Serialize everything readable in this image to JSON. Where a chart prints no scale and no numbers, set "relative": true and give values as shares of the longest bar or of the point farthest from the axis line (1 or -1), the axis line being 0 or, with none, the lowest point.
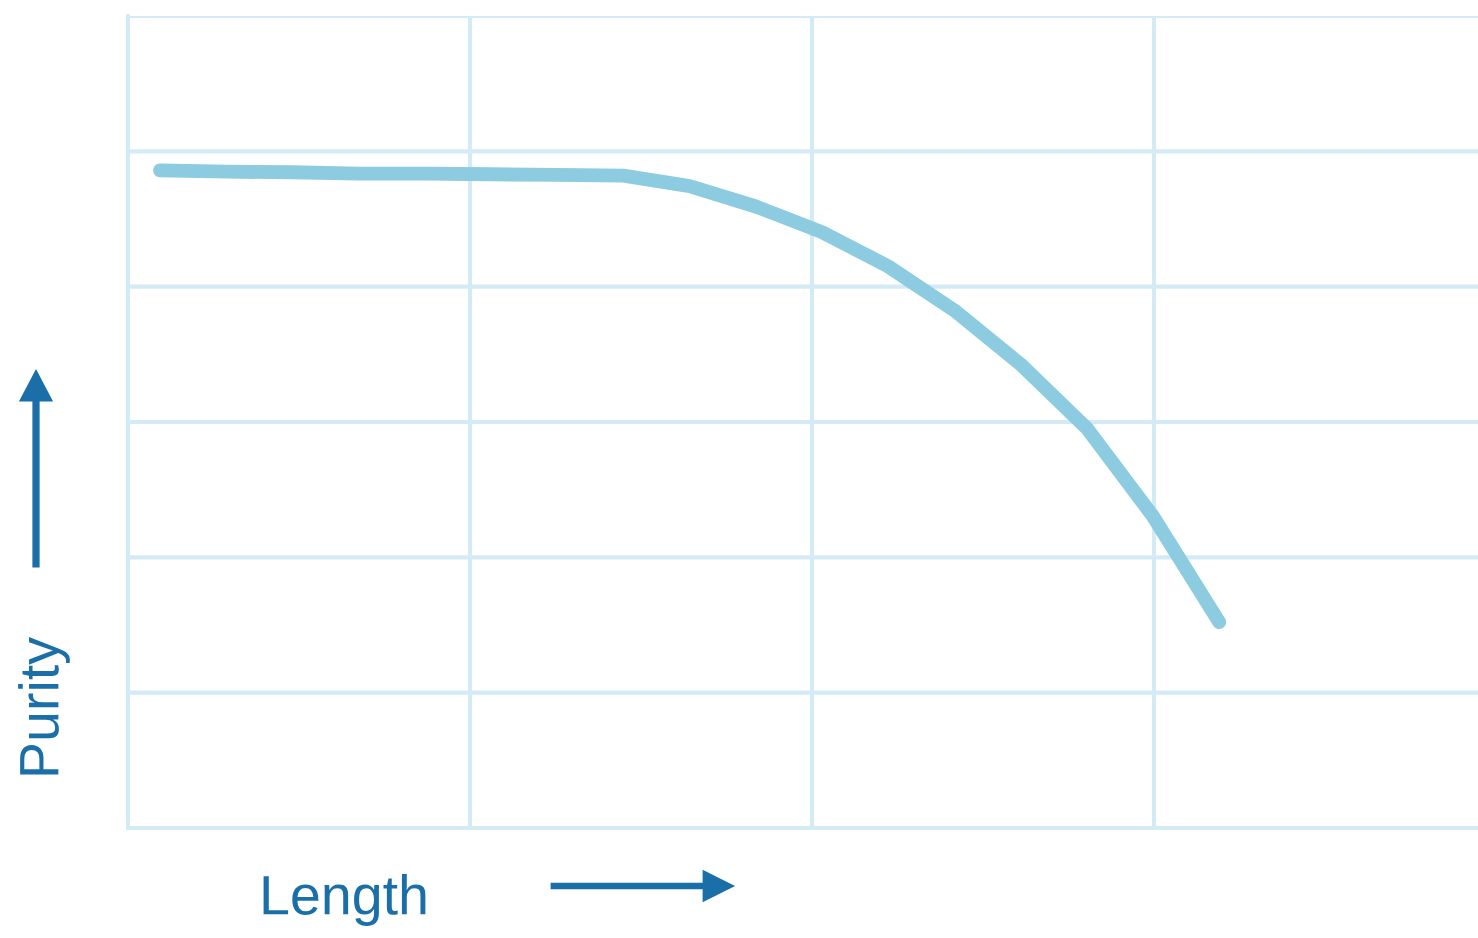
{
  "chart_data": {
    "type": "line",
    "relative": true,
    "xlabel": "Length",
    "ylabel": "Purity",
    "categories": [
      null,
      null,
      null,
      null,
      null,
      null,
      null,
      null,
      null,
      null,
      null,
      null,
      null,
      null,
      null,
      null,
      null
    ],
    "series": [
      {
        "color": "#8ccbe0",
        "values": [
          1.0,
          0.998,
          0.997,
          0.995,
          0.995,
          0.994,
          0.993,
          0.992,
          0.976,
          0.945,
          0.906,
          0.854,
          0.787,
          0.705,
          0.608,
          0.474,
          0.313
        ]
      }
    ],
    "grid": true,
    "marker": "none",
    "line_style": "solid"
  }
}
